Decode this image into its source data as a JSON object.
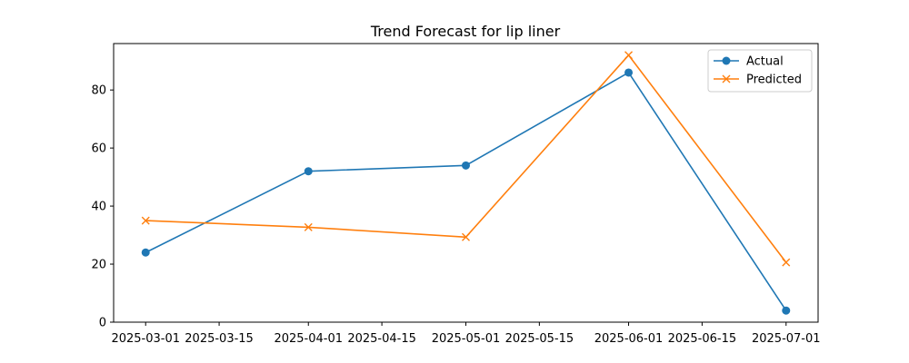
{
  "chart_data": {
    "type": "line",
    "title": "Trend Forecast for lip liner",
    "xlabel": "",
    "ylabel": "",
    "x": [
      "2025-03-01",
      "2025-04-01",
      "2025-05-01",
      "2025-06-01",
      "2025-07-01"
    ],
    "x_ticks": [
      "2025-03-01",
      "2025-03-15",
      "2025-04-01",
      "2025-04-15",
      "2025-05-01",
      "2025-05-15",
      "2025-06-01",
      "2025-06-15",
      "2025-07-01"
    ],
    "y_ticks": [
      0,
      20,
      40,
      60,
      80
    ],
    "ylim": [
      0,
      96
    ],
    "grid": false,
    "legend_position": "top-right",
    "series": [
      {
        "name": "Actual",
        "values": [
          24,
          52,
          54,
          86,
          4
        ],
        "color": "#1f77b4",
        "marker": "circle"
      },
      {
        "name": "Predicted",
        "values": [
          35,
          32.7,
          29.3,
          92,
          20.6
        ],
        "color": "#ff7f0e",
        "marker": "x"
      }
    ]
  }
}
